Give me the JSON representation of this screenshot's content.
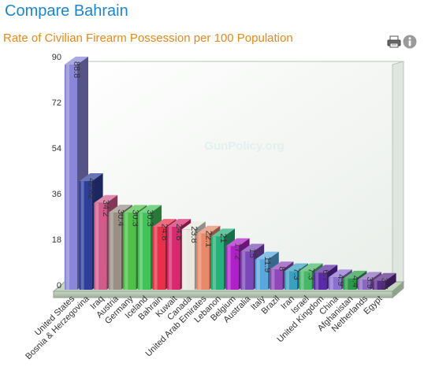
{
  "page": {
    "title": "Compare Bahrain"
  },
  "toolbar": {
    "print_icon": "print-icon",
    "info_icon": "info-icon"
  },
  "watermark": "GunPolicy.org",
  "chart_data": {
    "type": "bar",
    "title": "Rate of Civilian Firearm Possession per 100 Population",
    "xlabel": "",
    "ylabel": "",
    "ylim": [
      0,
      90
    ],
    "yticks": [
      0,
      18,
      36,
      54,
      72,
      90
    ],
    "grid": false,
    "legend": "none",
    "categories": [
      "United States",
      "Bosnia & Herzegovina",
      "Iraq",
      "Austria",
      "Germany",
      "Iceland",
      "Bahrain",
      "Kuwait",
      "Canada",
      "United Arab Emirates",
      "Lebanon",
      "Belgium",
      "Australia",
      "Italy",
      "Brazil",
      "Iran",
      "Israel",
      "United Kingdom",
      "China",
      "Afghanistan",
      "Netherlands",
      "Egypt"
    ],
    "values": [
      88.8,
      42.82,
      34.2,
      30.4,
      30.3,
      30.3,
      24.8,
      24.8,
      23.8,
      22.1,
      21,
      17.2,
      15,
      11.9,
      8,
      7.3,
      7.3,
      6.7,
      4.9,
      4.4,
      3.9,
      3.5
    ],
    "labels": [
      "88.8",
      "42.82",
      "34.2",
      "30.4",
      "30.3",
      "30.3",
      "24.8",
      "24.8",
      "23.8",
      "22.1",
      "21",
      "17.2",
      "15",
      "11.9",
      "8",
      "7.3",
      "7.3",
      "6.7",
      "4.9",
      "4.4",
      "3.9",
      "3.5"
    ],
    "colors": [
      "#8a86d8",
      "#2e3f9a",
      "#d05c8c",
      "#9a8f86",
      "#4fc04a",
      "#44c25a",
      "#e8304a",
      "#d8286e",
      "#e8e8e0",
      "#e88a6a",
      "#26b07a",
      "#b020c8",
      "#7a48b8",
      "#58a8e0",
      "#9048b8",
      "#3aa0c0",
      "#48b868",
      "#5a2aa8",
      "#8a70d0",
      "#2a9a4a",
      "#8a68c0",
      "#5a2a88"
    ]
  }
}
